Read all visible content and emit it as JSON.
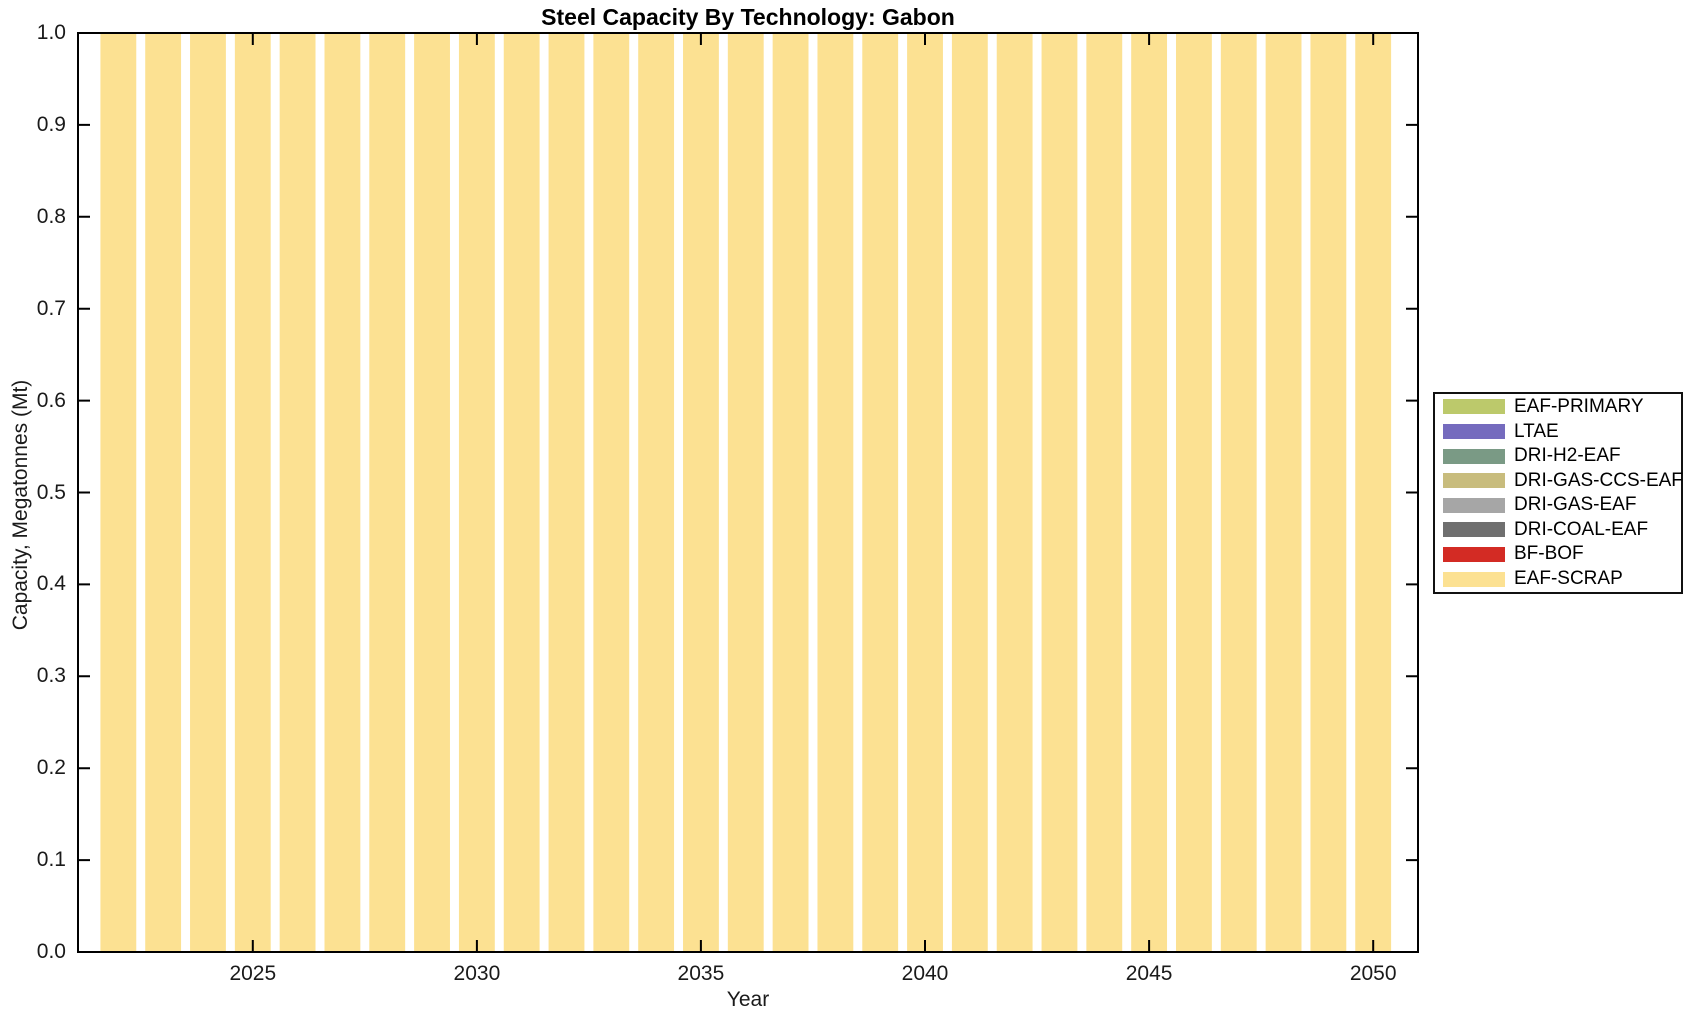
{
  "figure": {
    "background": "#ffffff",
    "axis_color": "#000000"
  },
  "chart_data": {
    "type": "bar",
    "stacked": true,
    "title": "Steel Capacity By Technology: Gabon",
    "xlabel": "Year",
    "ylabel": "Capacity, Megatonnes (Mt)",
    "xlim": [
      2021.1,
      2051.0
    ],
    "ylim": [
      0,
      1
    ],
    "xticks": [
      2025,
      2030,
      2035,
      2040,
      2045,
      2050
    ],
    "yticks": [
      0,
      0.1,
      0.2,
      0.3,
      0.4,
      0.5,
      0.6,
      0.7,
      0.8,
      0.9,
      1
    ],
    "ytick_labels": [
      "0.0",
      "0.1",
      "0.2",
      "0.3",
      "0.4",
      "0.5",
      "0.6",
      "0.7",
      "0.8",
      "0.9",
      "1.0"
    ],
    "bar_width_fraction": 0.8,
    "grid": false,
    "legend_position": "right-outside",
    "categories": [
      2022,
      2023,
      2024,
      2025,
      2026,
      2027,
      2028,
      2029,
      2030,
      2031,
      2032,
      2033,
      2034,
      2035,
      2036,
      2037,
      2038,
      2039,
      2040,
      2041,
      2042,
      2043,
      2044,
      2045,
      2046,
      2047,
      2048,
      2049,
      2050
    ],
    "series": [
      {
        "name": "EAF-PRIMARY",
        "color": "#BCC96B",
        "values": [
          0,
          0,
          0,
          0,
          0,
          0,
          0,
          0,
          0,
          0,
          0,
          0,
          0,
          0,
          0,
          0,
          0,
          0,
          0,
          0,
          0,
          0,
          0,
          0,
          0,
          0,
          0,
          0,
          0
        ]
      },
      {
        "name": "LTAE",
        "color": "#756BBE",
        "values": [
          0,
          0,
          0,
          0,
          0,
          0,
          0,
          0,
          0,
          0,
          0,
          0,
          0,
          0,
          0,
          0,
          0,
          0,
          0,
          0,
          0,
          0,
          0,
          0,
          0,
          0,
          0,
          0,
          0
        ]
      },
      {
        "name": "DRI-H2-EAF",
        "color": "#7A9A85",
        "values": [
          0,
          0,
          0,
          0,
          0,
          0,
          0,
          0,
          0,
          0,
          0,
          0,
          0,
          0,
          0,
          0,
          0,
          0,
          0,
          0,
          0,
          0,
          0,
          0,
          0,
          0,
          0,
          0,
          0
        ]
      },
      {
        "name": "DRI-GAS-CCS-EAF",
        "color": "#C8BC7D",
        "values": [
          0,
          0,
          0,
          0,
          0,
          0,
          0,
          0,
          0,
          0,
          0,
          0,
          0,
          0,
          0,
          0,
          0,
          0,
          0,
          0,
          0,
          0,
          0,
          0,
          0,
          0,
          0,
          0,
          0
        ]
      },
      {
        "name": "DRI-GAS-EAF",
        "color": "#A6A6A6",
        "values": [
          0,
          0,
          0,
          0,
          0,
          0,
          0,
          0,
          0,
          0,
          0,
          0,
          0,
          0,
          0,
          0,
          0,
          0,
          0,
          0,
          0,
          0,
          0,
          0,
          0,
          0,
          0,
          0,
          0
        ]
      },
      {
        "name": "DRI-COAL-EAF",
        "color": "#6F6F6F",
        "values": [
          0,
          0,
          0,
          0,
          0,
          0,
          0,
          0,
          0,
          0,
          0,
          0,
          0,
          0,
          0,
          0,
          0,
          0,
          0,
          0,
          0,
          0,
          0,
          0,
          0,
          0,
          0,
          0,
          0
        ]
      },
      {
        "name": "BF-BOF",
        "color": "#D32B24",
        "values": [
          0,
          0,
          0,
          0,
          0,
          0,
          0,
          0,
          0,
          0,
          0,
          0,
          0,
          0,
          0,
          0,
          0,
          0,
          0,
          0,
          0,
          0,
          0,
          0,
          0,
          0,
          0,
          0,
          0
        ]
      },
      {
        "name": "EAF-SCRAP",
        "color": "#FCE192",
        "values": [
          1,
          1,
          1,
          1,
          1,
          1,
          1,
          1,
          1,
          1,
          1,
          1,
          1,
          1,
          1,
          1,
          1,
          1,
          1,
          1,
          1,
          1,
          1,
          1,
          1,
          1,
          1,
          1,
          1
        ]
      }
    ]
  }
}
